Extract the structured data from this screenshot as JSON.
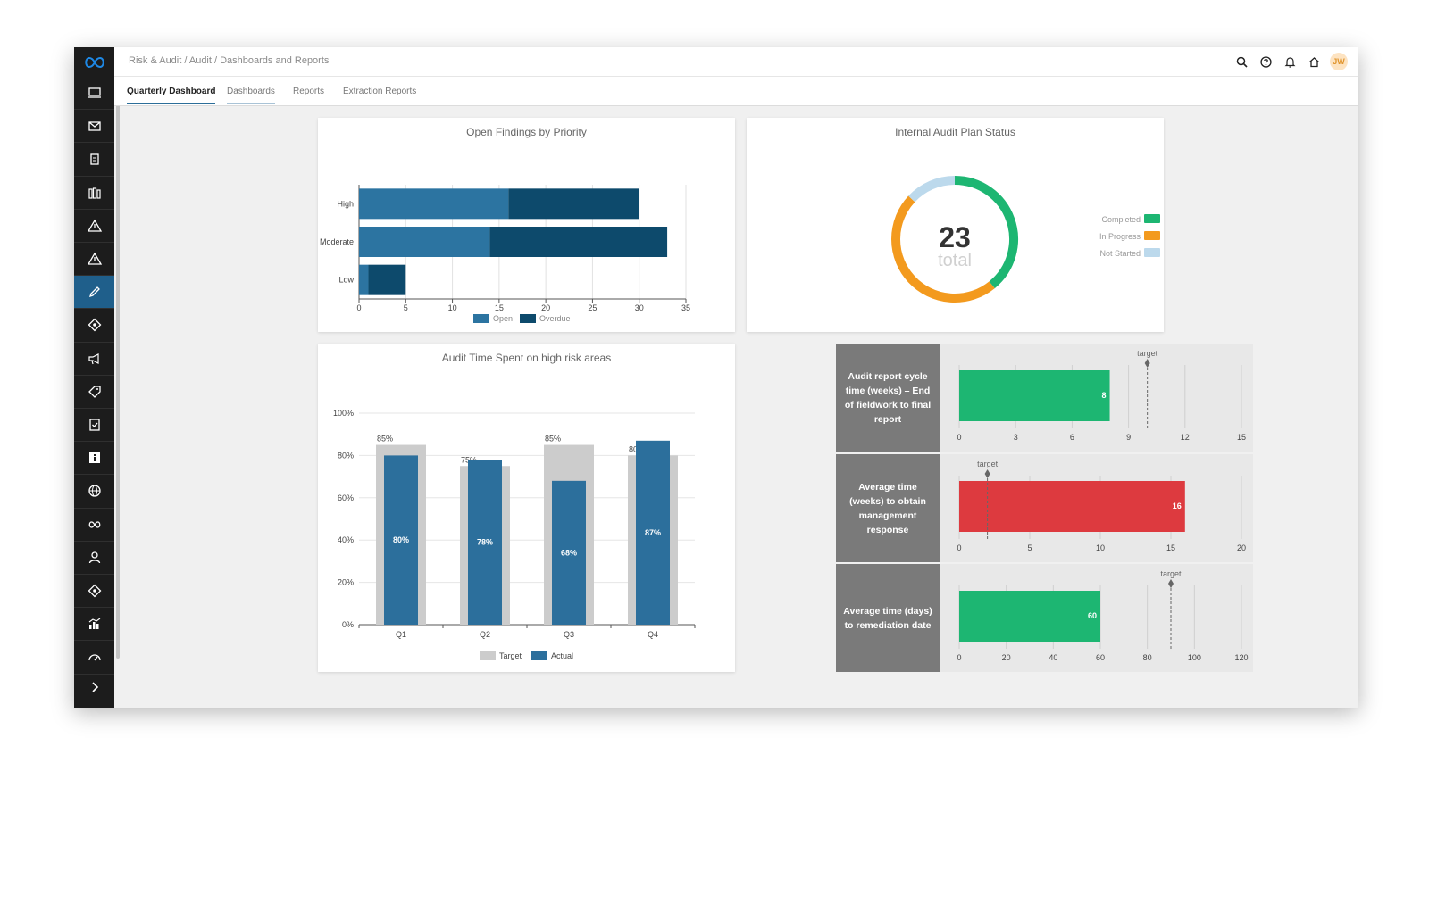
{
  "breadcrumb": "Risk & Audit / Audit / Dashboards and Reports",
  "user_initials": "JW",
  "tabs": [
    {
      "label": "Quarterly Dashboard"
    },
    {
      "label": "Dashboards"
    },
    {
      "label": "Reports"
    },
    {
      "label": "Extraction Reports"
    }
  ],
  "sidebar": {
    "items": [
      {
        "icon": "monitor-icon"
      },
      {
        "icon": "mail-icon"
      },
      {
        "icon": "clipboard-icon"
      },
      {
        "icon": "library-icon"
      },
      {
        "icon": "warning-icon"
      },
      {
        "icon": "warning-icon"
      },
      {
        "icon": "pencil-icon",
        "active": true
      },
      {
        "icon": "diamond-icon"
      },
      {
        "icon": "megaphone-icon"
      },
      {
        "icon": "tag-icon"
      },
      {
        "icon": "document-check-icon"
      },
      {
        "icon": "info-icon"
      },
      {
        "icon": "globe-icon"
      },
      {
        "icon": "infinity-icon"
      },
      {
        "icon": "person-icon"
      },
      {
        "icon": "diamond-icon"
      },
      {
        "icon": "bar-chart-icon"
      },
      {
        "icon": "gauge-icon"
      }
    ],
    "expand_icon": "chevron-right-icon"
  },
  "colors": {
    "open": "#2c74a1",
    "overdue": "#0d4a6c",
    "completed": "#1db672",
    "in_progress": "#f39a1e",
    "not_started": "#bcd9ec",
    "target_bar": "#cccccc",
    "actual_bar": "#2c6f9c",
    "good": "#1db672",
    "bad": "#dd3a3f",
    "gauge_label_bg": "#7a7a7a"
  },
  "chart_data": [
    {
      "type": "bar",
      "orientation": "horizontal",
      "stacked": true,
      "title": "Open Findings by Priority",
      "categories": [
        "High",
        "Moderate",
        "Low"
      ],
      "series": [
        {
          "name": "Open",
          "values": [
            16,
            14,
            1
          ]
        },
        {
          "name": "Overdue",
          "values": [
            14,
            19,
            4
          ]
        }
      ],
      "xlim": [
        0,
        35
      ],
      "xticks": [
        0,
        5,
        10,
        15,
        20,
        25,
        30,
        35
      ],
      "legend": "bottom"
    },
    {
      "type": "pie",
      "variant": "donut",
      "title": "Internal Audit Plan Status",
      "center_value": "23",
      "center_label": "total",
      "slices": [
        {
          "name": "Completed",
          "value": 9
        },
        {
          "name": "In Progress",
          "value": 11
        },
        {
          "name": "Not Started",
          "value": 3
        }
      ],
      "legend": "right"
    },
    {
      "type": "bar",
      "title": "Audit Time Spent on high risk areas",
      "categories": [
        "Q1",
        "Q2",
        "Q3",
        "Q4"
      ],
      "series": [
        {
          "name": "Target",
          "values": [
            85,
            75,
            85,
            80
          ],
          "labels": [
            "85%",
            "75%",
            "85%",
            "80%"
          ]
        },
        {
          "name": "Actual",
          "values": [
            80,
            78,
            68,
            87
          ],
          "labels": [
            "80%",
            "78%",
            "68%",
            "87%"
          ]
        }
      ],
      "ylim": [
        0,
        100
      ],
      "yticks": [
        "0%",
        "20%",
        "40%",
        "60%",
        "80%",
        "100%"
      ],
      "legend": "bottom"
    },
    {
      "type": "bar",
      "variant": "bullet",
      "label": "Audit report cycle time (weeks) – End of fieldwork to final report",
      "value": 8,
      "target": 10,
      "target_label": "target",
      "xlim": [
        0,
        15
      ],
      "xticks": [
        0,
        3,
        6,
        9,
        12,
        15
      ],
      "status": "good"
    },
    {
      "type": "bar",
      "variant": "bullet",
      "label": "Average time (weeks) to obtain management response",
      "value": 16,
      "target": 2,
      "target_label": "target",
      "xlim": [
        0,
        20
      ],
      "xticks": [
        0,
        5,
        10,
        15,
        20
      ],
      "status": "bad"
    },
    {
      "type": "bar",
      "variant": "bullet",
      "label": "Average time (days) to remediation date",
      "value": 60,
      "target": 90,
      "target_label": "target",
      "xlim": [
        0,
        120
      ],
      "xticks": [
        0,
        20,
        40,
        60,
        80,
        100,
        120
      ],
      "status": "good"
    }
  ]
}
